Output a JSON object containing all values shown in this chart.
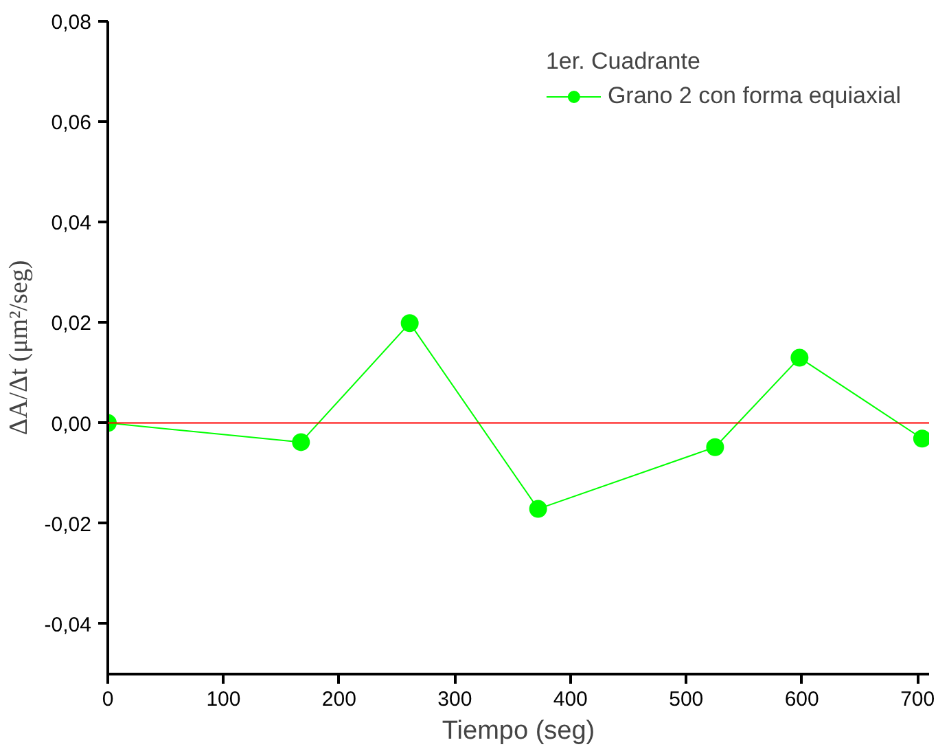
{
  "chart_data": {
    "type": "line",
    "xlabel": "Tiempo (seg)",
    "ylabel": "ΔA/Δt (μm²/seg)",
    "legend_title": "1er. Cuadrante",
    "x": [
      0,
      167,
      261,
      372,
      525,
      598,
      704
    ],
    "series": [
      {
        "name": "Grano 2 con forma equiaxial",
        "color": "#00ff00",
        "values": [
          0.0,
          -0.0038,
          0.0199,
          -0.0171,
          -0.0048,
          0.013,
          -0.0031
        ]
      }
    ],
    "xlim": [
      0,
      710
    ],
    "ylim": [
      -0.05,
      0.08
    ],
    "xticks": [
      0,
      100,
      200,
      300,
      400,
      500,
      600,
      700
    ],
    "yticks": [
      {
        "value": -0.04,
        "label": "-0,04"
      },
      {
        "value": -0.02,
        "label": "-0,02"
      },
      {
        "value": 0,
        "label": "0,00"
      },
      {
        "value": 0.02,
        "label": "0,02"
      },
      {
        "value": 0.04,
        "label": "0,04"
      },
      {
        "value": 0.06,
        "label": "0,06"
      },
      {
        "value": 0.08,
        "label": "0,08"
      }
    ],
    "ref_lines": [
      {
        "axis": "y",
        "value": 0,
        "color": "#ff0000"
      }
    ],
    "marker": "circle",
    "legend": "top right",
    "grid": false
  }
}
